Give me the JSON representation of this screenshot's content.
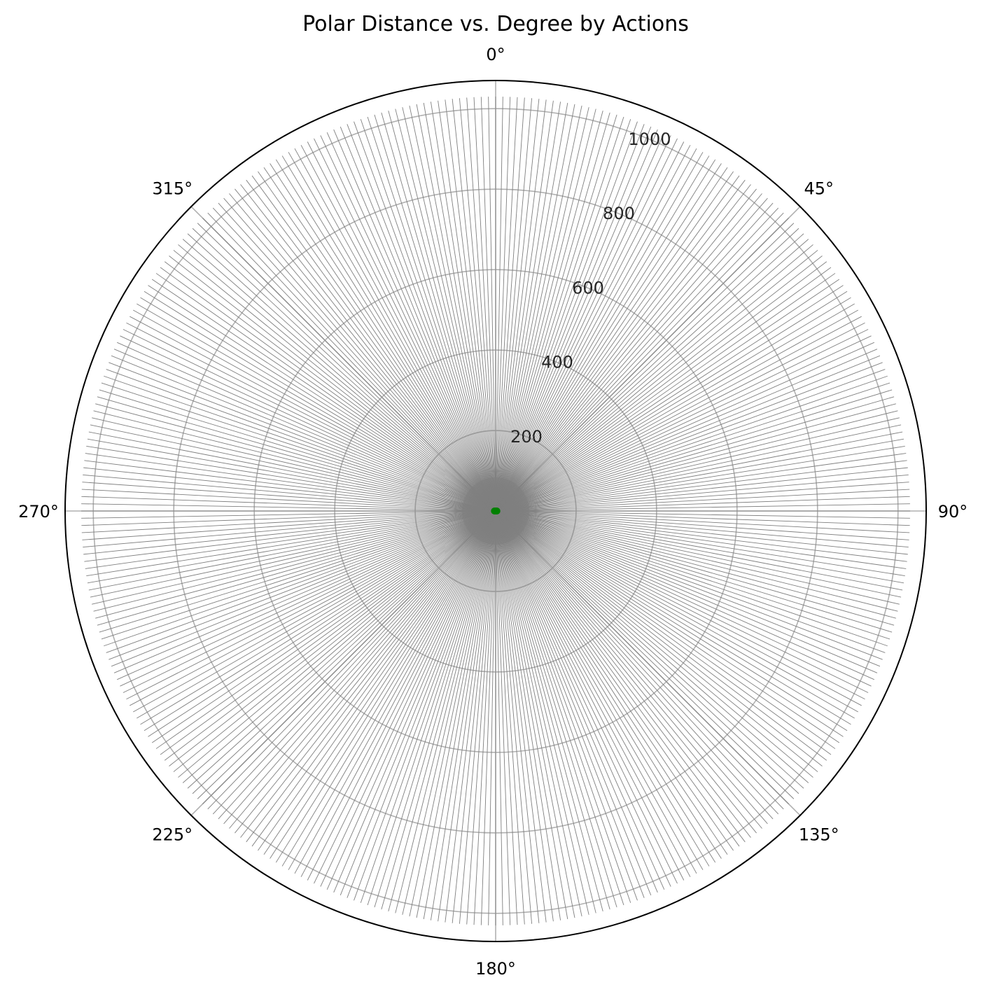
{
  "chart_data": {
    "type": "scatter",
    "projection": "polar",
    "title": "Polar Distance vs. Degree by Actions",
    "theta_direction": "clockwise",
    "theta_zero_location": "top",
    "theta_unit": "degrees",
    "theta_ticks": [
      0,
      45,
      90,
      135,
      180,
      225,
      270,
      315
    ],
    "theta_tick_labels": [
      "0°",
      "45°",
      "90°",
      "135°",
      "180°",
      "225°",
      "270°",
      "315°"
    ],
    "rlim": [
      0,
      1070
    ],
    "r_ticks": [
      200,
      400,
      600,
      800,
      1000
    ],
    "r_tick_labels": [
      "200",
      "400",
      "600",
      "800",
      "1000"
    ],
    "r_label_angle_deg": 22.5,
    "grid": true,
    "legend": "none",
    "colors": {
      "grid": "#b0b0b0",
      "spine": "#000000",
      "rays": "#7f7f7f",
      "center_marker": "#008000"
    },
    "series": [
      {
        "marker": "line",
        "color": "#7f7f7f",
        "description_points": {
          "note_ray_angular_step_deg": 1,
          "theta_start": 0,
          "theta_end": 359,
          "r_inner": 0,
          "r_outer": 1030
        }
      },
      {
        "marker": "point",
        "color": "#008000",
        "points": [
          {
            "theta": 270,
            "r": 3
          },
          {
            "theta": 90,
            "r": 3
          },
          {
            "theta": 0,
            "r": 0
          }
        ]
      }
    ]
  }
}
